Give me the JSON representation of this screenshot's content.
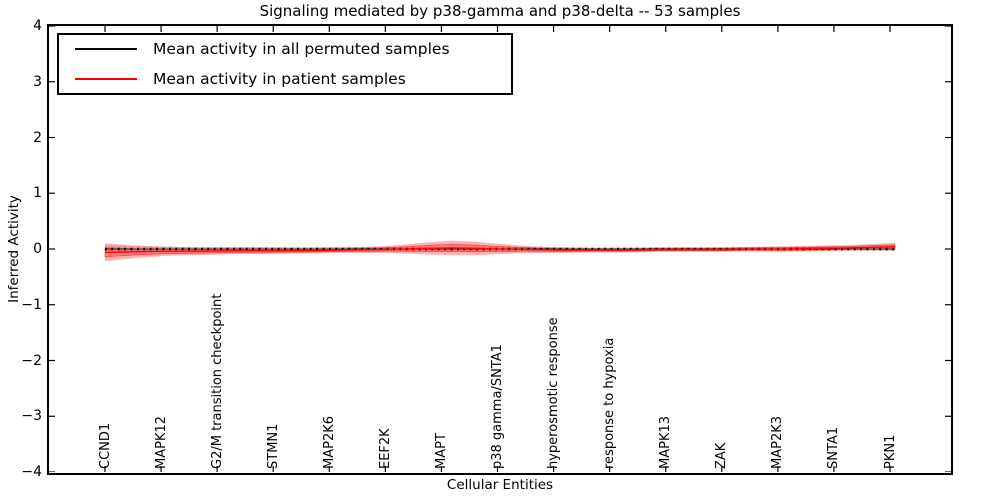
{
  "title": "Signaling mediated by p38-gamma and p38-delta -- 53 samples",
  "legend": {
    "items": [
      {
        "label": "Mean activity in all permuted samples",
        "color": "#000000"
      },
      {
        "label": "Mean activity in patient samples",
        "color": "#ff0000"
      }
    ],
    "position": "upper left"
  },
  "colors": {
    "frame": "#000000",
    "permuted_line": "#000000",
    "patient_line": "#ff0000",
    "patient_band": "#ff0000",
    "permuted_band": "#000000",
    "background": "#ffffff"
  },
  "chart_data": {
    "type": "line",
    "title": "Signaling mediated by p38-gamma and p38-delta -- 53 samples",
    "xlabel": "Cellular Entities",
    "ylabel": "Inferred Activity",
    "ylim": [
      -4,
      4
    ],
    "ytick_labels": [
      "4",
      "3",
      "2",
      "1",
      "0",
      "−1",
      "−2",
      "−3",
      "−4"
    ],
    "ytick_values": [
      4,
      3,
      2,
      1,
      0,
      -1,
      -2,
      -3,
      -4
    ],
    "xtick_labels": [
      "CCND1",
      "MAPK12",
      "G2/M transition checkpoint",
      "STMN1",
      "MAP2K6",
      "EEF2K",
      "MAPT",
      "p38 gamma/SNTA1",
      "hyperosmotic response",
      "response to hypoxia",
      "MAPK13",
      "ZAK",
      "MAP2K3",
      "SNTA1",
      "PKN1"
    ],
    "grid": false,
    "legend_position": "upper left",
    "series": [
      {
        "name": "Mean activity in all permuted samples",
        "color": "#000000",
        "line_style": "solid-with-dot-markers",
        "t": [
          0,
          0.04,
          0.12,
          0.3,
          0.6,
          1
        ],
        "mean": [
          0.0,
          0.0,
          0.0,
          0.0,
          0.0,
          0.0
        ],
        "band_halfwidth": [
          0.07,
          0.05,
          0.04,
          0.035,
          0.03,
          0.03
        ],
        "band_alpha": 0.12
      },
      {
        "name": "Mean activity in patient samples",
        "color": "#ff0000",
        "line_style": "solid",
        "t": [
          0,
          0.04,
          0.08,
          0.12,
          0.16,
          0.2,
          0.25,
          0.3,
          0.35,
          0.38,
          0.41,
          0.44,
          0.47,
          0.5,
          0.54,
          0.58,
          0.62,
          0.66,
          0.7,
          0.74,
          0.78,
          0.82,
          0.86,
          0.9,
          0.94,
          0.97,
          1.0
        ],
        "mean": [
          -0.06,
          -0.05,
          -0.04,
          -0.04,
          -0.03,
          -0.03,
          -0.03,
          -0.02,
          -0.01,
          0.0,
          0.01,
          0.02,
          0.01,
          0.0,
          -0.01,
          -0.02,
          -0.02,
          -0.02,
          -0.01,
          -0.01,
          -0.01,
          0.0,
          0.0,
          0.01,
          0.02,
          0.03,
          0.04
        ],
        "band_halfwidth": [
          0.16,
          0.11,
          0.08,
          0.07,
          0.06,
          0.06,
          0.05,
          0.05,
          0.06,
          0.08,
          0.11,
          0.13,
          0.12,
          0.09,
          0.06,
          0.05,
          0.04,
          0.04,
          0.04,
          0.04,
          0.04,
          0.04,
          0.05,
          0.05,
          0.05,
          0.06,
          0.07
        ],
        "band_alpha": 0.3,
        "inner_band_ratio": 0.5
      }
    ]
  }
}
